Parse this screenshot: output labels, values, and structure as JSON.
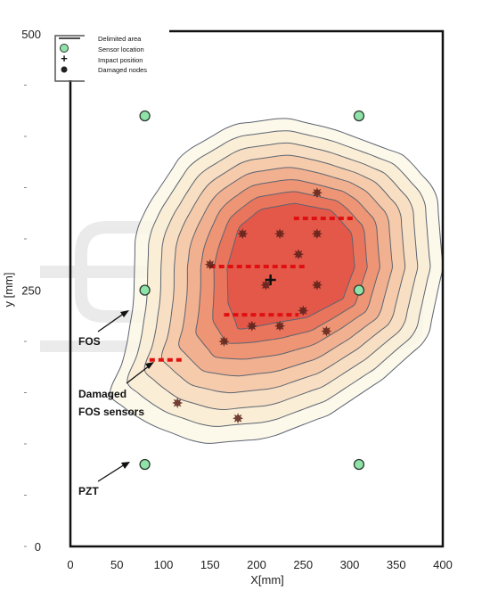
{
  "chart_data": {
    "type": "heatmap",
    "xlabel": "X[mm]",
    "ylabel": "y [mm]",
    "xlim": [
      0,
      400
    ],
    "ylim": [
      0,
      500
    ],
    "x_ticks": [
      "0",
      "50",
      "100",
      "150",
      "200",
      "250",
      "300",
      "350",
      "400"
    ],
    "y_ticks": [
      "0",
      "250",
      "500"
    ],
    "legend": {
      "placement": "top-left",
      "entries": [
        {
          "label": "Delimited area",
          "symbol": "line"
        },
        {
          "label": "Sensor location",
          "symbol": "green-circle"
        },
        {
          "label": "Impact position",
          "symbol": "plus"
        },
        {
          "label": "Damaged nodes",
          "symbol": "star"
        }
      ]
    },
    "sensor_locations": [
      {
        "x": 80,
        "y": 420
      },
      {
        "x": 310,
        "y": 420
      },
      {
        "x": 80,
        "y": 250
      },
      {
        "x": 310,
        "y": 250
      },
      {
        "x": 80,
        "y": 80
      },
      {
        "x": 310,
        "y": 80
      }
    ],
    "impact_position": {
      "x": 215,
      "y": 260
    },
    "damaged_nodes": [
      {
        "x": 185,
        "y": 305
      },
      {
        "x": 225,
        "y": 305
      },
      {
        "x": 265,
        "y": 305
      },
      {
        "x": 150,
        "y": 275
      },
      {
        "x": 245,
        "y": 285
      },
      {
        "x": 210,
        "y": 255
      },
      {
        "x": 265,
        "y": 255
      },
      {
        "x": 250,
        "y": 230
      },
      {
        "x": 195,
        "y": 215
      },
      {
        "x": 225,
        "y": 215
      },
      {
        "x": 275,
        "y": 210
      },
      {
        "x": 165,
        "y": 200
      },
      {
        "x": 265,
        "y": 345
      },
      {
        "x": 115,
        "y": 140
      },
      {
        "x": 180,
        "y": 125
      }
    ],
    "damaged_fos_segments": [
      {
        "x1": 240,
        "x2": 305,
        "y": 320
      },
      {
        "x1": 150,
        "x2": 255,
        "y": 273
      },
      {
        "x1": 165,
        "x2": 245,
        "y": 226
      },
      {
        "x1": 85,
        "x2": 120,
        "y": 182
      }
    ],
    "contour_levels": 8,
    "annotations": [
      "FOS",
      "Damaged FOS sensors",
      "PZT"
    ]
  }
}
